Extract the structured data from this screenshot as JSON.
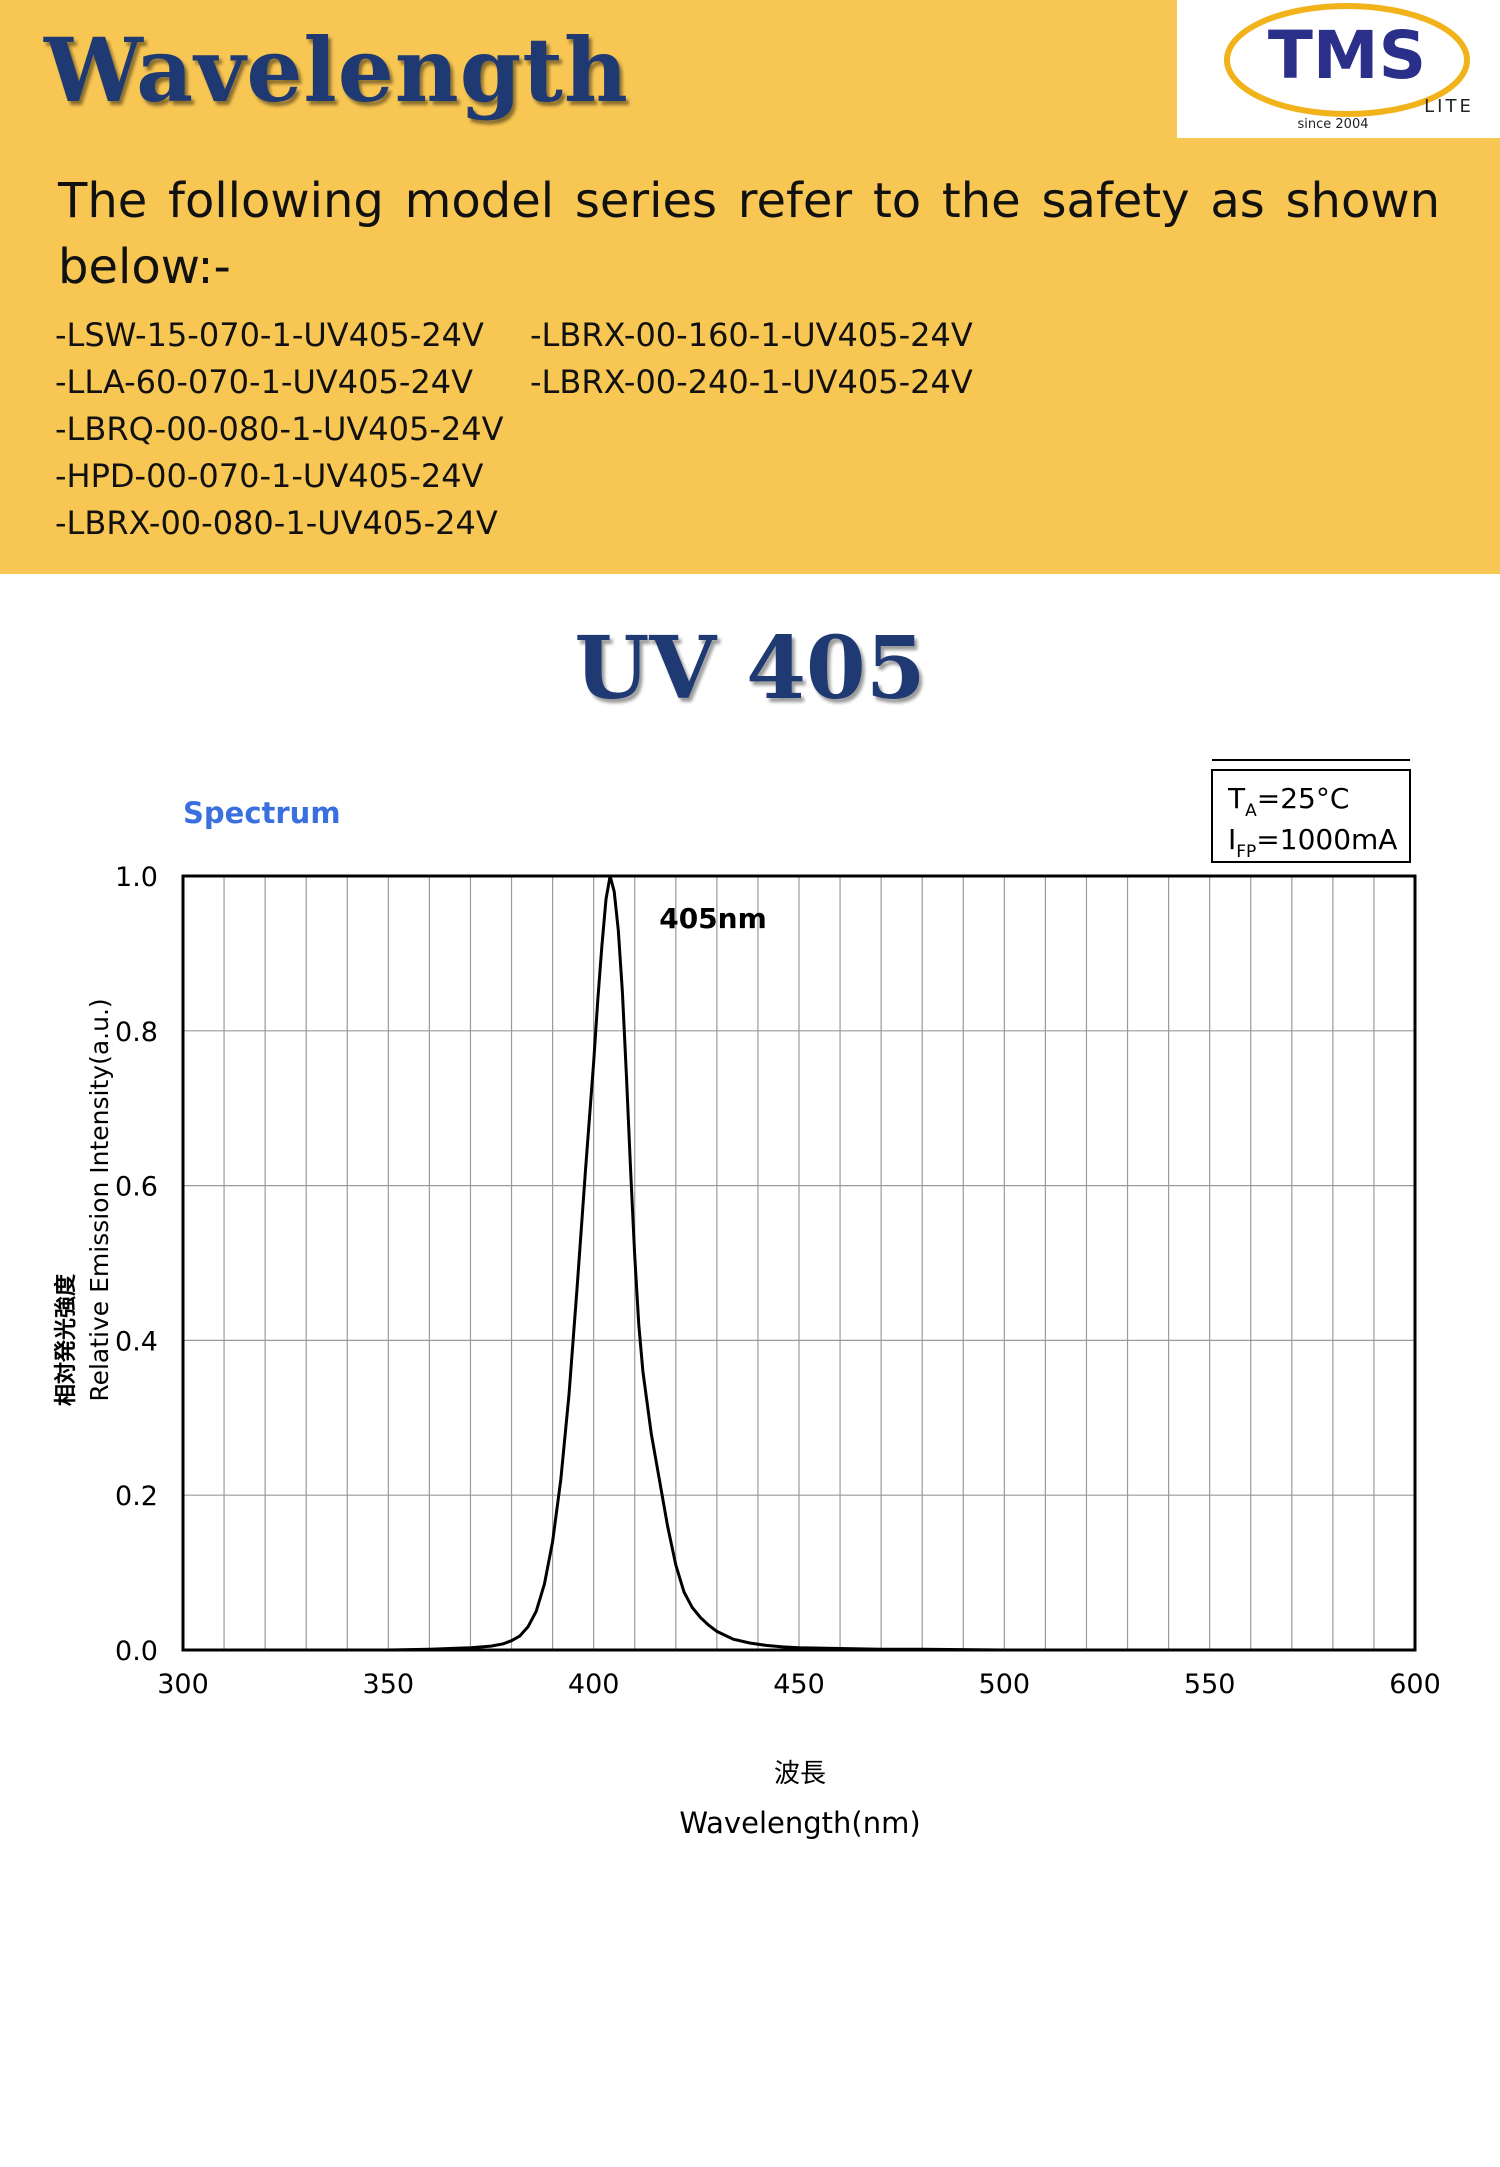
{
  "header": {
    "title": "Wavelength",
    "intro": "The following model series refer to the safety as shown below:-",
    "models_col1": [
      "-LSW-15-070-1-UV405-24V",
      "-LLA-60-070-1-UV405-24V",
      "-LBRQ-00-080-1-UV405-24V",
      "-HPD-00-070-1-UV405-24V",
      "-LBRX-00-080-1-UV405-24V"
    ],
    "models_col2": [
      "-LBRX-00-160-1-UV405-24V",
      "-LBRX-00-240-1-UV405-24V"
    ]
  },
  "logo": {
    "text": "TMS",
    "sub": "LITE",
    "since": "since 2004"
  },
  "subtitle": "UV 405",
  "colors": {
    "header_bg": "#f8c653",
    "title": "#1f3a73",
    "chart_title": "#3a6fe0"
  },
  "chart_data": {
    "type": "line",
    "title": "Spectrum",
    "xlabel": "Wavelength(nm)",
    "xlabel_cjk": "波長",
    "ylabel": "Relative Emission Intensity(a.u.)",
    "ylabel_cjk": "相対発光強度",
    "xlim": [
      300,
      600
    ],
    "ylim": [
      0.0,
      1.0
    ],
    "xticks": [
      "300",
      "350",
      "400",
      "450",
      "500",
      "550",
      "600"
    ],
    "yticks": [
      "0.0",
      "0.2",
      "0.4",
      "0.6",
      "0.8",
      "1.0"
    ],
    "grid": true,
    "peak_label": "405nm",
    "conditions": {
      "ta_label": "T",
      "ta_sub": "A",
      "ta_value": "=25°C",
      "ifp_label": "I",
      "ifp_sub": "FP",
      "ifp_value": "=1000mA"
    },
    "series": [
      {
        "x": [
          300,
          310,
          320,
          330,
          340,
          350,
          360,
          365,
          370,
          375,
          378,
          380,
          382,
          384,
          386,
          388,
          390,
          392,
          394,
          396,
          398,
          400,
          401,
          402,
          403,
          404,
          405,
          406,
          407,
          408,
          409,
          410,
          411,
          412,
          414,
          416,
          418,
          420,
          422,
          424,
          426,
          428,
          430,
          434,
          438,
          442,
          446,
          450,
          460,
          470,
          480,
          500,
          520,
          550,
          580,
          600
        ],
        "y": [
          0.0,
          0.0,
          0.0,
          0.0,
          0.0,
          0.0,
          0.001,
          0.002,
          0.003,
          0.005,
          0.008,
          0.012,
          0.018,
          0.03,
          0.05,
          0.085,
          0.14,
          0.22,
          0.33,
          0.47,
          0.62,
          0.76,
          0.84,
          0.91,
          0.97,
          1.0,
          0.98,
          0.93,
          0.85,
          0.74,
          0.62,
          0.51,
          0.42,
          0.36,
          0.28,
          0.22,
          0.16,
          0.11,
          0.075,
          0.055,
          0.042,
          0.032,
          0.024,
          0.014,
          0.009,
          0.006,
          0.004,
          0.003,
          0.002,
          0.001,
          0.001,
          0.0,
          0.0,
          0.0,
          0.0,
          0.0
        ]
      }
    ]
  }
}
